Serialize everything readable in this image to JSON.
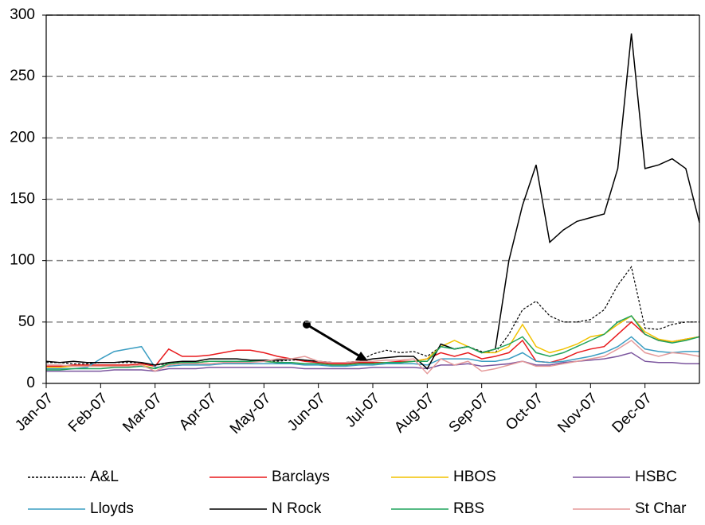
{
  "chart_data": {
    "type": "line",
    "x": [
      0,
      0.25,
      0.5,
      0.75,
      1,
      1.25,
      1.5,
      1.75,
      2,
      2.25,
      2.5,
      2.75,
      3,
      3.25,
      3.5,
      3.75,
      4,
      4.25,
      4.5,
      4.75,
      5,
      5.25,
      5.5,
      5.75,
      6,
      6.25,
      6.5,
      6.75,
      7,
      7.25,
      7.5,
      7.75,
      8,
      8.25,
      8.5,
      8.75,
      9,
      9.25,
      9.5,
      9.75,
      10,
      10.25,
      10.5,
      10.75,
      11,
      11.25,
      11.5,
      11.75,
      12
    ],
    "xlim": [
      0,
      12
    ],
    "xticks": [
      {
        "value": 0,
        "label": "Jan-07"
      },
      {
        "value": 1,
        "label": "Feb-07"
      },
      {
        "value": 2,
        "label": "Mar-07"
      },
      {
        "value": 3,
        "label": "Apr-07"
      },
      {
        "value": 4,
        "label": "May-07"
      },
      {
        "value": 5,
        "label": "Jun-07"
      },
      {
        "value": 6,
        "label": "Jul-07"
      },
      {
        "value": 7,
        "label": "Aug-07"
      },
      {
        "value": 8,
        "label": "Sep-07"
      },
      {
        "value": 9,
        "label": "Oct-07"
      },
      {
        "value": 10,
        "label": "Nov-07"
      },
      {
        "value": 11,
        "label": "Dec-07"
      }
    ],
    "ylim": [
      0,
      300
    ],
    "yticks": [
      0,
      50,
      100,
      150,
      200,
      250,
      300
    ],
    "grid": true,
    "series": [
      {
        "name": "A&L",
        "color": "#000000",
        "style": "dashed",
        "values": [
          17,
          17,
          16,
          16,
          17,
          17,
          17,
          17,
          15,
          16,
          17,
          17,
          18,
          18,
          18,
          18,
          18,
          18,
          19,
          19,
          18,
          17,
          17,
          18,
          24,
          27,
          25,
          26,
          22,
          30,
          28,
          30,
          26,
          25,
          40,
          60,
          67,
          55,
          50,
          50,
          52,
          60,
          80,
          95,
          45,
          44,
          48,
          50,
          50
        ]
      },
      {
        "name": "Barclays",
        "color": "#e8191c",
        "style": "solid",
        "values": [
          14,
          14,
          15,
          15,
          15,
          15,
          15,
          16,
          14,
          28,
          22,
          22,
          23,
          25,
          27,
          27,
          25,
          22,
          20,
          18,
          17,
          16,
          16,
          17,
          17,
          17,
          18,
          18,
          20,
          25,
          22,
          25,
          20,
          22,
          25,
          35,
          18,
          17,
          20,
          25,
          28,
          30,
          40,
          50,
          40,
          35,
          34,
          36,
          38
        ]
      },
      {
        "name": "HBOS",
        "color": "#f2c200",
        "style": "solid",
        "values": [
          13,
          13,
          14,
          14,
          14,
          14,
          14,
          15,
          12,
          16,
          17,
          17,
          18,
          18,
          18,
          18,
          18,
          17,
          17,
          16,
          16,
          15,
          15,
          16,
          16,
          17,
          17,
          18,
          20,
          30,
          35,
          30,
          25,
          25,
          30,
          48,
          30,
          25,
          28,
          32,
          38,
          40,
          48,
          55,
          42,
          36,
          34,
          36,
          38
        ]
      },
      {
        "name": "HSBC",
        "color": "#7b559e",
        "style": "solid",
        "values": [
          10,
          10,
          10,
          10,
          10,
          11,
          11,
          11,
          10,
          12,
          12,
          12,
          13,
          13,
          13,
          13,
          13,
          13,
          13,
          12,
          12,
          12,
          12,
          12,
          13,
          13,
          13,
          13,
          12,
          15,
          15,
          16,
          14,
          15,
          16,
          18,
          15,
          15,
          17,
          18,
          19,
          20,
          22,
          25,
          18,
          17,
          17,
          16,
          16
        ]
      },
      {
        "name": "Lloyds",
        "color": "#3a9dc2",
        "style": "solid",
        "values": [
          12,
          12,
          12,
          13,
          20,
          26,
          28,
          30,
          13,
          14,
          15,
          15,
          15,
          16,
          16,
          16,
          16,
          16,
          16,
          15,
          15,
          14,
          14,
          15,
          15,
          16,
          16,
          16,
          15,
          20,
          20,
          20,
          18,
          18,
          20,
          25,
          18,
          17,
          18,
          20,
          22,
          25,
          30,
          38,
          28,
          26,
          25,
          26,
          26
        ]
      },
      {
        "name": "N Rock",
        "color": "#000000",
        "style": "solid",
        "values": [
          18,
          17,
          18,
          17,
          17,
          17,
          18,
          17,
          15,
          17,
          18,
          18,
          20,
          20,
          20,
          19,
          19,
          19,
          20,
          19,
          18,
          17,
          17,
          18,
          20,
          21,
          22,
          22,
          12,
          32,
          28,
          30,
          25,
          28,
          100,
          145,
          178,
          115,
          125,
          132,
          135,
          138,
          175,
          285,
          175,
          178,
          183,
          175,
          131
        ]
      },
      {
        "name": "RBS",
        "color": "#1fa35b",
        "style": "solid",
        "values": [
          11,
          11,
          12,
          12,
          12,
          13,
          13,
          14,
          12,
          16,
          17,
          17,
          18,
          18,
          18,
          18,
          18,
          17,
          17,
          16,
          16,
          15,
          15,
          16,
          16,
          17,
          17,
          18,
          18,
          30,
          28,
          30,
          25,
          28,
          32,
          38,
          25,
          22,
          25,
          30,
          35,
          40,
          50,
          55,
          40,
          35,
          33,
          35,
          38
        ]
      },
      {
        "name": "St Char",
        "color": "#e59a9a",
        "style": "solid",
        "values": [
          15,
          15,
          14,
          14,
          14,
          14,
          14,
          15,
          10,
          15,
          16,
          16,
          16,
          17,
          17,
          17,
          18,
          20,
          20,
          22,
          18,
          17,
          17,
          18,
          18,
          19,
          19,
          20,
          8,
          20,
          15,
          18,
          10,
          12,
          15,
          18,
          14,
          14,
          16,
          18,
          20,
          22,
          28,
          35,
          25,
          22,
          25,
          24,
          22
        ]
      }
    ]
  }
}
